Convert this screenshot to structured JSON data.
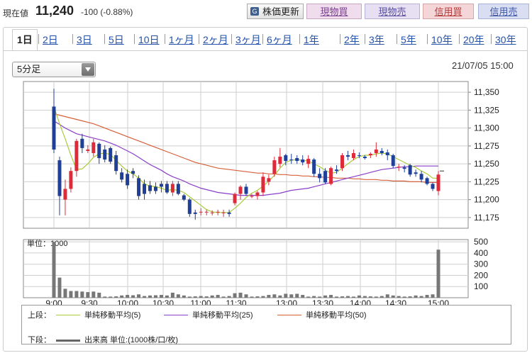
{
  "header": {
    "price_label": "現在値",
    "price": "11,240",
    "change": "-100 (-0.88%)",
    "buttons": {
      "update": "株価更新",
      "genbutsu_buy": "現物買",
      "genbutsu_sell": "現物売",
      "shinyo_buy": "信用買",
      "shinyo_sell": "信用売"
    }
  },
  "tabs": [
    "1日",
    "2日",
    "3日",
    "5日",
    "10日",
    "1ヶ月",
    "2ヶ月",
    "3ヶ月",
    "6ヶ月",
    "1年",
    "2年",
    "3年",
    "5年",
    "10年",
    "20年",
    "30年"
  ],
  "interval_select": "5分足",
  "datetime": "21/07/05 15:00",
  "colors": {
    "up": "#dd2b3a",
    "down": "#1f3f99",
    "ma5": "#a9cc3a",
    "ma25": "#8a3fc9",
    "ma50": "#d6603a",
    "volume": "#777777"
  },
  "chart_data": {
    "type": "candlestick",
    "x_ticks": [
      "9:00",
      "9:30",
      "10:00",
      "10:30",
      "11:00",
      "11:30",
      "13:00",
      "13:30",
      "14:00",
      "14:30",
      "15:00"
    ],
    "y_ticks": [
      "11,350",
      "11,325",
      "11,300",
      "11,275",
      "11,250",
      "11,225",
      "11,200",
      "11,175"
    ],
    "ylim": [
      11160,
      11365
    ],
    "candles": [
      {
        "o": 11330,
        "h": 11355,
        "l": 11265,
        "c": 11270
      },
      {
        "o": 11255,
        "h": 11260,
        "l": 11178,
        "c": 11205
      },
      {
        "o": 11200,
        "h": 11228,
        "l": 11178,
        "c": 11215
      },
      {
        "o": 11215,
        "h": 11245,
        "l": 11210,
        "c": 11240
      },
      {
        "o": 11240,
        "h": 11285,
        "l": 11232,
        "c": 11282
      },
      {
        "o": 11285,
        "h": 11292,
        "l": 11265,
        "c": 11272
      },
      {
        "o": 11268,
        "h": 11276,
        "l": 11265,
        "c": 11270
      },
      {
        "o": 11265,
        "h": 11285,
        "l": 11260,
        "c": 11280
      },
      {
        "o": 11278,
        "h": 11280,
        "l": 11250,
        "c": 11258
      },
      {
        "o": 11270,
        "h": 11276,
        "l": 11252,
        "c": 11256
      },
      {
        "o": 11272,
        "h": 11274,
        "l": 11250,
        "c": 11253
      },
      {
        "o": 11262,
        "h": 11268,
        "l": 11235,
        "c": 11240
      },
      {
        "o": 11238,
        "h": 11244,
        "l": 11224,
        "c": 11228
      },
      {
        "o": 11236,
        "h": 11242,
        "l": 11215,
        "c": 11220
      },
      {
        "o": 11240,
        "h": 11244,
        "l": 11230,
        "c": 11236
      },
      {
        "o": 11230,
        "h": 11234,
        "l": 11200,
        "c": 11205
      },
      {
        "o": 11222,
        "h": 11228,
        "l": 11200,
        "c": 11208
      },
      {
        "o": 11220,
        "h": 11226,
        "l": 11208,
        "c": 11212
      },
      {
        "o": 11218,
        "h": 11224,
        "l": 11208,
        "c": 11212
      },
      {
        "o": 11222,
        "h": 11226,
        "l": 11210,
        "c": 11218
      },
      {
        "o": 11222,
        "h": 11226,
        "l": 11208,
        "c": 11210
      },
      {
        "o": 11210,
        "h": 11226,
        "l": 11205,
        "c": 11222
      },
      {
        "o": 11222,
        "h": 11226,
        "l": 11206,
        "c": 11208
      },
      {
        "o": 11206,
        "h": 11208,
        "l": 11198,
        "c": 11200
      },
      {
        "o": 11200,
        "h": 11202,
        "l": 11176,
        "c": 11180
      },
      {
        "o": 11182,
        "h": 11186,
        "l": 11172,
        "c": 11180
      },
      {
        "o": 11182,
        "h": 11188,
        "l": 11178,
        "c": 11183
      },
      {
        "o": 11182,
        "h": 11186,
        "l": 11178,
        "c": 11183
      },
      {
        "o": 11182,
        "h": 11185,
        "l": 11178,
        "c": 11182
      },
      {
        "o": 11182,
        "h": 11186,
        "l": 11178,
        "c": 11183
      },
      {
        "o": 11182,
        "h": 11186,
        "l": 11176,
        "c": 11182
      },
      {
        "o": 11182,
        "h": 11186,
        "l": 11176,
        "c": 11180
      },
      {
        "o": 11195,
        "h": 11210,
        "l": 11192,
        "c": 11208
      },
      {
        "o": 11208,
        "h": 11220,
        "l": 11200,
        "c": 11218
      },
      {
        "o": 11218,
        "h": 11222,
        "l": 11205,
        "c": 11208
      },
      {
        "o": 11205,
        "h": 11208,
        "l": 11202,
        "c": 11205
      },
      {
        "o": 11205,
        "h": 11212,
        "l": 11200,
        "c": 11210
      },
      {
        "o": 11210,
        "h": 11238,
        "l": 11205,
        "c": 11232
      },
      {
        "o": 11225,
        "h": 11235,
        "l": 11220,
        "c": 11230
      },
      {
        "o": 11236,
        "h": 11260,
        "l": 11232,
        "c": 11255
      },
      {
        "o": 11250,
        "h": 11272,
        "l": 11245,
        "c": 11260
      },
      {
        "o": 11262,
        "h": 11264,
        "l": 11248,
        "c": 11254
      },
      {
        "o": 11256,
        "h": 11264,
        "l": 11250,
        "c": 11255
      },
      {
        "o": 11258,
        "h": 11262,
        "l": 11250,
        "c": 11254
      },
      {
        "o": 11256,
        "h": 11262,
        "l": 11248,
        "c": 11252
      },
      {
        "o": 11250,
        "h": 11262,
        "l": 11244,
        "c": 11257
      },
      {
        "o": 11256,
        "h": 11258,
        "l": 11232,
        "c": 11236
      },
      {
        "o": 11236,
        "h": 11244,
        "l": 11224,
        "c": 11230
      },
      {
        "o": 11240,
        "h": 11244,
        "l": 11222,
        "c": 11224
      },
      {
        "o": 11222,
        "h": 11246,
        "l": 11220,
        "c": 11244
      },
      {
        "o": 11242,
        "h": 11248,
        "l": 11236,
        "c": 11240
      },
      {
        "o": 11244,
        "h": 11265,
        "l": 11240,
        "c": 11262
      },
      {
        "o": 11262,
        "h": 11268,
        "l": 11255,
        "c": 11260
      },
      {
        "o": 11258,
        "h": 11270,
        "l": 11255,
        "c": 11265
      },
      {
        "o": 11262,
        "h": 11266,
        "l": 11258,
        "c": 11261
      },
      {
        "o": 11260,
        "h": 11262,
        "l": 11256,
        "c": 11258
      },
      {
        "o": 11262,
        "h": 11266,
        "l": 11258,
        "c": 11264
      },
      {
        "o": 11265,
        "h": 11280,
        "l": 11260,
        "c": 11270
      },
      {
        "o": 11268,
        "h": 11272,
        "l": 11262,
        "c": 11265
      },
      {
        "o": 11266,
        "h": 11270,
        "l": 11255,
        "c": 11262
      },
      {
        "o": 11262,
        "h": 11264,
        "l": 11244,
        "c": 11247
      },
      {
        "o": 11246,
        "h": 11250,
        "l": 11240,
        "c": 11246
      },
      {
        "o": 11245,
        "h": 11248,
        "l": 11238,
        "c": 11243
      },
      {
        "o": 11248,
        "h": 11250,
        "l": 11232,
        "c": 11235
      },
      {
        "o": 11238,
        "h": 11242,
        "l": 11232,
        "c": 11236
      },
      {
        "o": 11236,
        "h": 11240,
        "l": 11224,
        "c": 11228
      },
      {
        "o": 11230,
        "h": 11232,
        "l": 11220,
        "c": 11222
      },
      {
        "o": 11222,
        "h": 11224,
        "l": 11212,
        "c": 11215
      },
      {
        "o": 11212,
        "h": 11240,
        "l": 11206,
        "c": 11235
      }
    ],
    "ma5": [
      11330,
      11306,
      11285,
      11262,
      11242,
      11243,
      11250,
      11259,
      11264,
      11265,
      11263,
      11255,
      11247,
      11240,
      11236,
      11230,
      11222,
      11219,
      11218,
      11216,
      11213,
      11214,
      11213,
      11210,
      11204,
      11198,
      11192,
      11186,
      11183,
      11182,
      11182,
      11182,
      11188,
      11195,
      11203,
      11209,
      11213,
      11219,
      11226,
      11234,
      11244,
      11252,
      11255,
      11256,
      11255,
      11254,
      11250,
      11246,
      11241,
      11237,
      11238,
      11244,
      11250,
      11256,
      11260,
      11262,
      11262,
      11264,
      11265,
      11264,
      11260,
      11256,
      11252,
      11248,
      11245,
      11240,
      11236,
      11230,
      11230
    ],
    "ma25": [
      11310,
      11305,
      11300,
      11296,
      11292,
      11290,
      11288,
      11286,
      11284,
      11282,
      11279,
      11276,
      11272,
      11268,
      11264,
      11259,
      11254,
      11249,
      11245,
      11241,
      11236,
      11232,
      11229,
      11226,
      11222,
      11219,
      11216,
      11214,
      11212,
      11210,
      11209,
      11208,
      11207,
      11206,
      11206,
      11206,
      11206,
      11206,
      11207,
      11208,
      11209,
      11211,
      11213,
      11214,
      11215,
      11216,
      11218,
      11220,
      11222,
      11224,
      11226,
      11228,
      11230,
      11232,
      11234,
      11236,
      11238,
      11240,
      11242,
      11243,
      11244,
      11245,
      11246,
      11246,
      11247,
      11247,
      11247,
      11247,
      11247
    ],
    "ma50": [
      11320,
      11318,
      11316,
      11314,
      11312,
      11310,
      11308,
      11306,
      11303,
      11300,
      11297,
      11294,
      11291,
      11288,
      11285,
      11282,
      11279,
      11276,
      11273,
      11270,
      11267,
      11264,
      11261,
      11258,
      11255,
      11252,
      11250,
      11248,
      11246,
      11244,
      11243,
      11242,
      11241,
      11240,
      11239,
      11238,
      11237,
      11237,
      11236,
      11236,
      11235,
      11235,
      11234,
      11234,
      11233,
      11233,
      11232,
      11232,
      11231,
      11231,
      11230,
      11230,
      11230,
      11229,
      11229,
      11228,
      11228,
      11228,
      11227,
      11227,
      11226,
      11226,
      11226,
      11225,
      11225,
      11225,
      11224,
      11224,
      11224
    ],
    "volume": {
      "unit_label": "単位：1000",
      "y_ticks": [
        "500",
        "400",
        "300",
        "200",
        "100"
      ],
      "ylim": [
        0,
        520
      ],
      "values": [
        500,
        180,
        80,
        60,
        60,
        55,
        50,
        55,
        45,
        10,
        10,
        12,
        20,
        25,
        22,
        30,
        15,
        20,
        22,
        25,
        20,
        45,
        30,
        20,
        10,
        12,
        15,
        12,
        20,
        25,
        10,
        15,
        40,
        45,
        30,
        10,
        12,
        15,
        25,
        30,
        20,
        35,
        30,
        35,
        25,
        10,
        15,
        10,
        20,
        25,
        10,
        12,
        15,
        10,
        20,
        15,
        12,
        10,
        15,
        30,
        20,
        15,
        10,
        12,
        20,
        15,
        25,
        30,
        430
      ]
    },
    "legend": {
      "upper_label": "上段：",
      "ma5_label": "単純移動平均(5)",
      "ma25_label": "単純移動平均(25)",
      "ma50_label": "単純移動平均(50)",
      "lower_label": "下段：",
      "volume_label": "出来高 単位:(1000株/口/枚)"
    }
  }
}
